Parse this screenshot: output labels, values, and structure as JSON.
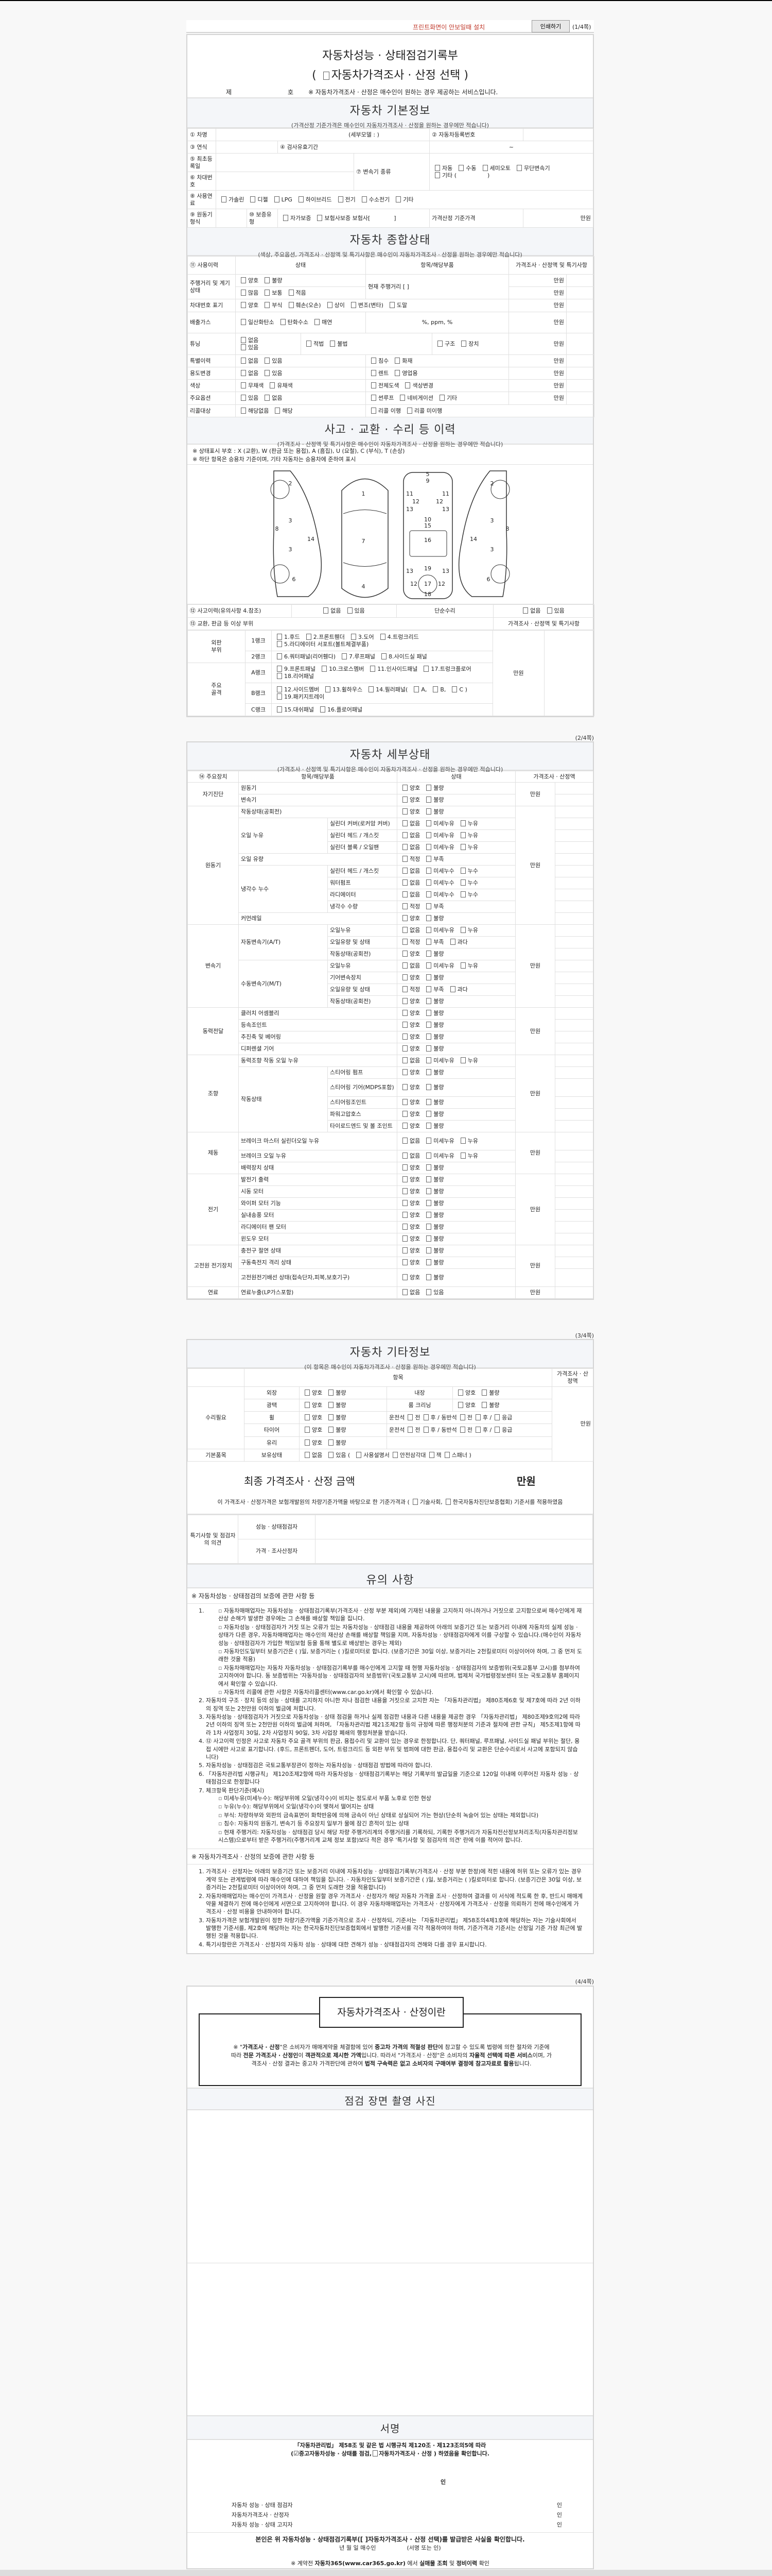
{
  "toolbar": {
    "install_link": "프린트화면이 안보일때 설치",
    "print_button": "인쇄하기",
    "page": "(1/4쪽)"
  },
  "header": {
    "title": "자동차성능 · 상태점검기록부",
    "subtitle": "자동차가격조사 · 산정 선택",
    "paren_open": "(",
    "paren_close": ")",
    "no_prefix": "제",
    "no_suffix": "호",
    "notice": "※ 자동차가격조사 · 산정은 매수인이 원하는 경우 제공하는 서비스입니다."
  },
  "basic": {
    "title": "자동차 기본정보",
    "note": "(가격산정 기준가격은 매수인이 자동차가격조사 · 산정을 원하는 경우에만 적습니다)",
    "car_name": "① 차명",
    "sub_model": "(세부모델 :                         )",
    "reg_no": "② 자동차등록번호",
    "year": "③ 연식",
    "inspection_period": "④ 검사유효기간",
    "period_sep": "~",
    "first_reg": "⑤ 최초등록일",
    "vin": "⑥ 차대번호",
    "transmission": "⑦ 변속기 종류",
    "transmission_opts": [
      "자동",
      "수동",
      "세미오토",
      "무단변속기"
    ],
    "transmission_other": "기타 (",
    "transmission_other_close": ")",
    "fuel": "⑧ 사용연료",
    "fuel_opts": [
      "가솔린",
      "디젤",
      "LPG",
      "하이브리드",
      "전기",
      "수소전기",
      "기타"
    ],
    "engine_type": "⑨ 원동기형식",
    "warranty_type": "⑩ 보증유형",
    "warranty_opts": [
      "자가보증",
      "보험사보증 보험사["
    ],
    "warranty_close": "]",
    "base_price": "가격산정 기준가격",
    "unit": "만원"
  },
  "summary": {
    "title": "자동차 종합상태",
    "note": "(색상, 주요옵션, 가격조사 · 산정액 및 특기사항은 매수인이 자동차가격조사 · 산정을 원하는 경우에만 적습니다)",
    "headers": [
      "⑪ 사용이력",
      "상태",
      "항목/해당부품",
      "가격조사 · 산정액 및 특기사항"
    ],
    "unit": "만원",
    "mileage": {
      "label": "주행거리 및 계기상태",
      "opts1": [
        "양호",
        "불량"
      ],
      "opts2": [
        "많음",
        "보통",
        "적음"
      ],
      "item": "현재 주행거리 [                          ]"
    },
    "vin_mark": {
      "label": "차대번호 표기",
      "opts": [
        "양호",
        "부식",
        "훼손(오손)",
        "상이",
        "변조(변타)",
        "도말"
      ]
    },
    "emission": {
      "label": "배출가스",
      "opts": [
        "일산화탄소",
        "탄화수소",
        "매연"
      ],
      "item": "%,        ppm,        %"
    },
    "tuning": {
      "label": "튜닝",
      "opts": [
        "없음",
        "있음"
      ],
      "legal": [
        "적법",
        "불법"
      ],
      "kind": [
        "구조",
        "장치"
      ]
    },
    "special": {
      "label": "특별이력",
      "opts": [
        "없음",
        "있음"
      ],
      "items": [
        "침수",
        "화재"
      ]
    },
    "usage_change": {
      "label": "용도변경",
      "opts": [
        "없음",
        "있음"
      ],
      "items": [
        "렌트",
        "영업용"
      ]
    },
    "color": {
      "label": "색상",
      "opts": [
        "무채색",
        "유채색"
      ],
      "items": [
        "전체도색",
        "색상변경"
      ]
    },
    "options": {
      "label": "주요옵션",
      "opts": [
        "있음",
        "없음"
      ],
      "items": [
        "썬루프",
        "네비게이션",
        "기타"
      ]
    },
    "recall": {
      "label": "리콜대상",
      "opts": [
        "해당없음",
        "해당"
      ],
      "items": [
        "리콜 이행",
        "리콜 미이행"
      ]
    }
  },
  "accident": {
    "title": "사고 · 교환 · 수리 등 이력",
    "note": "(가격조사 · 산정액 및 특기사항은 매수인이 자동차가격조사 · 산정을 원하는 경우에만 적습니다)",
    "legend1": "※ 상태표시 부호 : X (교환), W (판금 또는 용접), A (흠집), U (요철), C (부식), T (손상)",
    "legend2": "※ 하단 항목은 승용차 기준이며, 기타 자동차는 승용차에 준하여 표시",
    "diagram_labels": {
      "left": [
        "2",
        "3",
        "8",
        "14",
        "3",
        "6"
      ],
      "top": [
        "1",
        "7",
        "4"
      ],
      "under": [
        "5",
        "9",
        "11",
        "11",
        "12",
        "12",
        "13",
        "13",
        "10",
        "15",
        "16",
        "19",
        "13",
        "13",
        "17",
        "12",
        "12",
        "18"
      ],
      "right": [
        "2",
        "3",
        "8",
        "14",
        "3",
        "6"
      ]
    },
    "history_label": "⑫ 사고이력(유의사항 4.참조)",
    "history_opts": [
      "없음",
      "있음"
    ],
    "simple_repair": "단순수리",
    "simple_opts": [
      "없음",
      "있음"
    ],
    "parts_label": "⑬ 교환, 판금 등 이상 부위",
    "price_header": "가격조사 · 산정액 및 특기사항",
    "unit": "만원",
    "outer": "외판 부위",
    "frame": "주요 골격",
    "ranks": [
      {
        "rank": "1랭크",
        "opts": [
          "1.후드",
          "2.프론트휀더",
          "3.도어",
          "4.트렁크리드",
          "5.라디에이터 서포트(볼트체결부품)"
        ]
      },
      {
        "rank": "2랭크",
        "opts": [
          "6.쿼터패널(리어휀다)",
          "7.루프패널",
          "8.사이드실 패널"
        ]
      },
      {
        "rank": "A랭크",
        "opts": [
          "9.프론트패널",
          "10.크로스멤버",
          "11.인사이드패널",
          "17.트렁크플로어",
          "18.리어패널"
        ]
      },
      {
        "rank": "B랭크",
        "opts": [
          "12.사이드멤버",
          "13.휠하우스",
          "14.필러패널(",
          "A,",
          "B,",
          "C )",
          "19.패키지트레이"
        ]
      },
      {
        "rank": "C랭크",
        "opts": [
          "15.대쉬패널",
          "16.플로어패널"
        ]
      }
    ]
  },
  "page2": {
    "page": "(2/4쪽)",
    "title": "자동차 세부상태",
    "note": "(가격조사 · 산정액 및 특기사항은 매수인이 자동차가격조사 · 산정을 원하는 경우에만 적습니다)",
    "headers": [
      "⑭ 주요장치",
      "항목/해당부품",
      "상태",
      "가격조사 · 산정액"
    ],
    "unit": "만원",
    "groups": [
      {
        "name": "자기진단",
        "items": [
          {
            "name": "원동기",
            "opts": [
              "양호",
              "불량"
            ]
          },
          {
            "name": "변속기",
            "opts": [
              "양호",
              "불량"
            ]
          }
        ]
      },
      {
        "name": "원동기",
        "items": [
          {
            "name": "작동상태(공회전)",
            "opts": [
              "양호",
              "불량"
            ]
          },
          {
            "name": "오일 누유",
            "subs": [
              {
                "name": "실린더 커버(로커암 커버)",
                "opts": [
                  "없음",
                  "미세누유",
                  "누유"
                ]
              },
              {
                "name": "실린더 헤드 / 개스킷",
                "opts": [
                  "없음",
                  "미세누유",
                  "누유"
                ]
              },
              {
                "name": "실린더 블록 / 오일팬",
                "opts": [
                  "없음",
                  "미세누유",
                  "누유"
                ]
              }
            ]
          },
          {
            "name": "오일 유량",
            "opts": [
              "적정",
              "부족"
            ]
          },
          {
            "name": "냉각수 누수",
            "subs": [
              {
                "name": "실린더 헤드 / 개스킷",
                "opts": [
                  "없음",
                  "미세누수",
                  "누수"
                ]
              },
              {
                "name": "워터펌프",
                "opts": [
                  "없음",
                  "미세누수",
                  "누수"
                ]
              },
              {
                "name": "라디에이터",
                "opts": [
                  "없음",
                  "미세누수",
                  "누수"
                ]
              },
              {
                "name": "냉각수 수량",
                "opts": [
                  "적정",
                  "부족"
                ]
              }
            ]
          },
          {
            "name": "커먼레일",
            "opts": [
              "양호",
              "불량"
            ]
          }
        ]
      },
      {
        "name": "변속기",
        "items": [
          {
            "name": "자동변속기(A/T)",
            "subs": [
              {
                "name": "오일누유",
                "opts": [
                  "없음",
                  "미세누유",
                  "누유"
                ]
              },
              {
                "name": "오일유량 및 상태",
                "opts": [
                  "적정",
                  "부족",
                  "과다"
                ]
              },
              {
                "name": "작동상태(공회전)",
                "opts": [
                  "양호",
                  "불량"
                ]
              }
            ]
          },
          {
            "name": "수동변속기(M/T)",
            "subs": [
              {
                "name": "오일누유",
                "opts": [
                  "없음",
                  "미세누유",
                  "누유"
                ]
              },
              {
                "name": "기어변속장치",
                "opts": [
                  "양호",
                  "불량"
                ]
              },
              {
                "name": "오일유량 및 상태",
                "opts": [
                  "적정",
                  "부족",
                  "과다"
                ]
              },
              {
                "name": "작동상태(공회전)",
                "opts": [
                  "양호",
                  "불량"
                ]
              }
            ]
          }
        ]
      },
      {
        "name": "동력전달",
        "items": [
          {
            "name": "클러치 어셈블리",
            "opts": [
              "양호",
              "불량"
            ]
          },
          {
            "name": "등속조인트",
            "opts": [
              "양호",
              "불량"
            ]
          },
          {
            "name": "추진축 및 베어링",
            "opts": [
              "양호",
              "불량"
            ]
          },
          {
            "name": "디퍼렌셜 기어",
            "opts": [
              "양호",
              "불량"
            ]
          }
        ]
      },
      {
        "name": "조향",
        "items": [
          {
            "name": "동력조향 작동 오일 누유",
            "opts": [
              "없음",
              "미세누유",
              "누유"
            ]
          },
          {
            "name": "작동상태",
            "subs": [
              {
                "name": "스티어링 펌프",
                "opts": [
                  "양호",
                  "불량"
                ]
              },
              {
                "name": "스티어링 기어(MDPS포함)",
                "opts": [
                  "양호",
                  "불량"
                ]
              },
              {
                "name": "스티어링조인트",
                "opts": [
                  "양호",
                  "불량"
                ]
              },
              {
                "name": "파워고압호스",
                "opts": [
                  "양호",
                  "불량"
                ]
              },
              {
                "name": "타이로드엔드 및 볼 조인트",
                "opts": [
                  "양호",
                  "불량"
                ]
              }
            ]
          }
        ]
      },
      {
        "name": "제동",
        "items": [
          {
            "name": "브레이크 마스터 실린더오일 누유",
            "opts": [
              "없음",
              "미세누유",
              "누유"
            ]
          },
          {
            "name": "브레이크 오일 누유",
            "opts": [
              "없음",
              "미세누유",
              "누유"
            ]
          },
          {
            "name": "배력장치 상태",
            "opts": [
              "양호",
              "불량"
            ]
          }
        ]
      },
      {
        "name": "전기",
        "items": [
          {
            "name": "발전기 출력",
            "opts": [
              "양호",
              "불량"
            ]
          },
          {
            "name": "시동 모터",
            "opts": [
              "양호",
              "불량"
            ]
          },
          {
            "name": "와이퍼 모터 기능",
            "opts": [
              "양호",
              "불량"
            ]
          },
          {
            "name": "실내송풍 모터",
            "opts": [
              "양호",
              "불량"
            ]
          },
          {
            "name": "라디에이터 팬 모터",
            "opts": [
              "양호",
              "불량"
            ]
          },
          {
            "name": "윈도우 모터",
            "opts": [
              "양호",
              "불량"
            ]
          }
        ]
      },
      {
        "name": "고전원 전기장치",
        "items": [
          {
            "name": "충전구 절연 상태",
            "opts": [
              "양호",
              "불량"
            ]
          },
          {
            "name": "구동축전지 격리 상태",
            "opts": [
              "양호",
              "불량"
            ]
          },
          {
            "name": "고전원전기배선 상태(접속단자,피복,보호기구)",
            "opts": [
              "양호",
              "불량"
            ]
          }
        ]
      },
      {
        "name": "연료",
        "items": [
          {
            "name": "연료누출(LP가스포함)",
            "opts": [
              "없음",
              "있음"
            ]
          }
        ]
      }
    ]
  },
  "page3": {
    "page": "(3/4쪽)",
    "title": "자동차 기타정보",
    "note": "(이 항목은 매수인이 자동차가격조사 · 산정을 원하는 경우에만 적습니다)",
    "header_item": "항목",
    "header_price": "가격조사 · 산정액",
    "unit": "만원",
    "repair": "수리필요",
    "good_bad": [
      "양호",
      "불량"
    ],
    "exterior": "외장",
    "interior": "내장",
    "polish": "광택",
    "room_cleaning": "룸 크리닝",
    "wheel": "휠",
    "tire": "타이어",
    "glass": "유리",
    "positions": {
      "driver": "운전석",
      "front": "전",
      "rear": "후",
      "sep": "/",
      "passenger": "동반석",
      "emergency": "응급"
    },
    "basic_items": "기본품목",
    "possession": "보유상태",
    "possession_opts": [
      "없음",
      "있음 ("
    ],
    "possession_items": [
      "사용설명서",
      "안전삼각대",
      "잭",
      "스패너 )"
    ],
    "final_title": "최종 가격조사 · 산정 금액",
    "final_unit": "만원",
    "final_note_a": "이 가격조사 · 산정가격은 보험개발원의 차량기준가액을 바탕으로 한 기준가격과 (",
    "final_note_opts": [
      "기술사회,",
      "한국자동차진단보증협회) 기준서를 적용하였음"
    ],
    "opinion": "특기사항 및 점검자의 의견",
    "inspector": "성능 · 상태점검자",
    "appraiser": "가격 · 조사산정자",
    "notes_title": "유의 사항",
    "notes1_head": "※ 자동차성능 · 상태점검의 보증에 관한 사항 등",
    "notes1": [
      {
        "text": "",
        "bullets": [
          "자동차매매업자는 자동차성능 · 상태점검기록부(가격조사 · 산정 부분 제외)에 기재된 내용을 고지하지 아니하거나 거짓으로 고지함으로써 매수인에게 재산상 손해가 발생한 경우에는 그 손해를 배상할 책임을 집니다.",
          "자동차성능 · 상태점검자가 거짓 또는 오류가 있는 자동차성능 · 상태점검 내용을 제공하여 아래의 보증기간 또는 보증거리 이내에 자동차의 실제 성능 · 상태가 다른 경우, 자동차매매업자는 매수인의 재산상 손해를 배상할 책임을 지며, 자동차성능 · 상태점검자에게 이를 구상할 수 있습니다.(매수인이 자동차성능 · 상태점검자가 가입한 책임보험 등을 통해 별도로 배상받는 경우는 제외)",
          "자동차인도일부터 보증기간은 (      )일, 보증거리는 (      )킬로미터로 합니다. (보증기간은 30일 이상, 보증거리는 2천킬로미터 이상이어야 하며, 그 중 먼저 도래한 것을 적용)",
          "자동차매매업자는 자동차 자동차성능 · 상태점검기록부를 매수인에게 고지할 때 현행 자동차성능 · 상태점검자의 보증범위(국토교통부 고시)를 첨부하여 고지하여야 합니다. 동 보증범위는 '자동차성능 · 상태점검자의 보증범위'(국토교통부 고시)에 따르며, 법제처 국가법령정보센터 또는 국토교통부 홈페이지에서 확인할 수 있습니다.",
          "자동차의 리콜에 관한 사항은 자동차리콜센터(www.car.go.kr)에서 확인할 수 있습니다."
        ]
      },
      {
        "text": "자동차의 구조 · 장치 등의 성능 · 상태를 고지하지 아니한 자나 점검한 내용을 거짓으로 고지한 자는 「자동차관리법」 제80조제6호 및 제7호에 따라 2년 이하의 징역 또는 2천만원 이하의 벌금에 처합니다."
      },
      {
        "text": "자동차성능 · 상태점검자가 거짓으로 자동차성능 · 상태 점검을 하거나 실제 점검한 내용과 다른 내용을 제공한 경우 「자동차관리법」 제80조제9호의2에 따라 2년 이하의 징역 또는 2천만원 이하의 벌금에 처하며, 「자동차관리법 제21조제2항 등의 규정에 따른 행정처분의 기준과 절차에 관한 규칙」 제5조제1항에 따라 1차 사업정지 30일, 2차 사업정지 90일, 3차 사업장 폐쇄의 행정처분을 받습니다."
      },
      {
        "text": "⑫ 사고이력 인정은 사고로 자동차 주요 골격 부위의 판금, 용접수리 및 교환이 있는 경우로 한정합니다. 단, 쿼터패널, 루프패널, 사이드실 패널 부위는 절단, 용접 시에만 사고로 표기합니다. (후드, 프론트펜더, 도어, 트렁크리드 등 외판 부위 및 범퍼에 대한 판금, 용접수리 및 교환은 단순수리로서 사고에 포함되지 않습니다)"
      },
      {
        "text": "자동차성능 · 상태점검은 국토교통부장관이 정하는 자동차성능 · 상태점검 방법에 따라야 합니다."
      },
      {
        "text": "「자동차관리법 시행규칙」 제120조제2항에 따라 자동차성능 · 상태점검기록부는 해당 기록부의 발급일을 기준으로 120일 이내에 이루어진 자동차 성능 · 상태점검으로 한정합니다"
      },
      {
        "text": "체크항목 판단기준(예시)",
        "bullets": [
          "미세누유(미세누수): 해당부위에 오일(냉각수)이 비치는 정도로서 부품 노후로 인한 현상",
          "누유(누수): 해당부위에서 오일(냉각수)이 맺혀서 떨어지는 상태",
          "부식: 차량하부와 외판의 금속표면이 화학반응에 의해 금속이 아닌 상태로 상실되어 가는 현상(단순히 녹슬어 있는 상태는 제외합니다)",
          "침수: 자동차의 원동기, 변속기 등 주요장치 일부가 물에 잠긴 흔적이 있는 상태",
          "현재 주행거리: 자동차성능 · 상태점검 당시 해당 차량 주행거리계의 주행거리를 기록하되, 기록한 주행거리가 자동차전산정보처리조직(자동차관리정보시스템)으로부터 받은 주행거리(주행거리계 교체 정보 포함)보다 적은 경우 '특기사항 및 점검자의 의견' 란에 이를 적어야 합니다."
        ]
      }
    ],
    "notes2_head": "※ 자동차가격조사 · 산정의 보증에 관한 사항 등",
    "notes2": [
      {
        "text": "가격조사 · 산정자는 아래의 보증기간 또는 보증거리 이내에 자동차성능 · 상태점검기록부(가격조사 · 산정 부분 한정)에 적힌 내용에 허위 또는 오류가 있는 경우 계약 또는 관계법령에 따라 매수인에 대하여 책임을 집니다. · 자동차인도일부터 보증기간은 (      )일, 보증거리는 (      )킬로미터로 합니다. (보증기간은 30일 이상, 보증거리는 2천킬로미터 이상이어야 하며, 그 중 먼저 도래한 것을 적용합니다)"
      },
      {
        "text": "자동차매매업자는 매수인이 가격조사 · 산정을 원할 경우 가격조사 · 산정자가 해당 자동차 가격을 조사 · 산정하여 결과를 이 서식에 적도록 한 후, 반드시 매매계약을 체결하기 전에 매수인에게 서면으로 고지하여야 합니다. 이 경우 자동차매매업자는 가격조사 · 산정자에게 가격조사 · 산정을 의뢰하기 전에 매수인에게 가격조사 · 산정 비용을 안내하여야 합니다."
      },
      {
        "text": "자동차가격은 보험개발원이 정한 차량기준가액을 기준가격으로 조사 · 산정하되, 기준서는 「자동차관리법」 제58조의4제1호에 해당하는 자는 기술사회에서 발행한 기준서를, 제2호에 해당하는 자는 한국자동차진단보증협회에서 발행한 기준서를 각각 적용하여야 하며, 기준가격과 기준서는 산정일 기준 가장 최근에 발행된 것을 적용합니다."
      },
      {
        "text": "특기사항란은 가격조사 · 산정자의 자동차 성능 · 상태에 대한 견해가 성능 · 상태점검자의 견해와 다를 경우 표시합니다."
      }
    ]
  },
  "page4": {
    "page": "(4/4쪽)",
    "about_title": "자동차가격조사 · 산정이란",
    "about": [
      {
        "t": "※ \""
      },
      {
        "t": "가격조사 · 산정",
        "b": true
      },
      {
        "t": "\"은 소비자가 매매계약을 체결함에 있어 "
      },
      {
        "t": "중고차 가격의 적절성 판단",
        "b": true
      },
      {
        "t": "에 참고할 수 있도록 법령에 의한 절차와 기준에 따라 "
      },
      {
        "t": "전문 가격조사 · 산정인",
        "b": true
      },
      {
        "t": "이 "
      },
      {
        "t": "객관적으로 제시한 가액",
        "b": true
      },
      {
        "t": "입니다. 따라서 \"가격조사 · 산정\"은 소비자의 "
      },
      {
        "t": "자율적 선택에 따른 서비스",
        "b": true
      },
      {
        "t": "이며, 가격조사 · 산정 결과는 중고차 가격판단에 관하여 "
      },
      {
        "t": "법적 구속력은 없고 소비자의 구매여부 결정에 참고자료로 활용",
        "b": true
      },
      {
        "t": "됩니다."
      }
    ],
    "photo_title": "점검 장면 촬영 사진",
    "sign_title": "서명",
    "law_line": "「자동차관리법」 제58조 및 같은 법 시행규칙 제120조 · 제123조의5에 따라",
    "confirm_open": "(",
    "confirm_opt1": "중고자동차성능 · 상태를 점검,",
    "confirm_opt2": "자동차가격조사 · 산정 ) 하였음을 확인합니다.",
    "seal": "인",
    "signers": [
      {
        "role": "자동차 성능 · 상태 점검자",
        "seal": "인"
      },
      {
        "role": "자동차가격조사 · 산정자",
        "seal": "인"
      },
      {
        "role": "자동차 성능 · 상태 고지자",
        "seal": "인"
      }
    ],
    "buyer_confirm": "본인은 위 자동차성능 · 상태점검기록부([   ]자동차가격조사 · 산정 선택)를 발급받은 사실을 확인합니다.",
    "date_line": "년    월    일     매수인",
    "sign_hint": "(서명 또는 인)",
    "car365": [
      {
        "t": "※ 계약전 "
      },
      {
        "t": "자동차365(www.car365.go.kr)",
        "b": true
      },
      {
        "t": " 에서 "
      },
      {
        "t": "실매물 조회",
        "b": true
      },
      {
        "t": " 및 "
      },
      {
        "t": "정비이력",
        "b": true
      },
      {
        "t": " 확인"
      }
    ]
  }
}
